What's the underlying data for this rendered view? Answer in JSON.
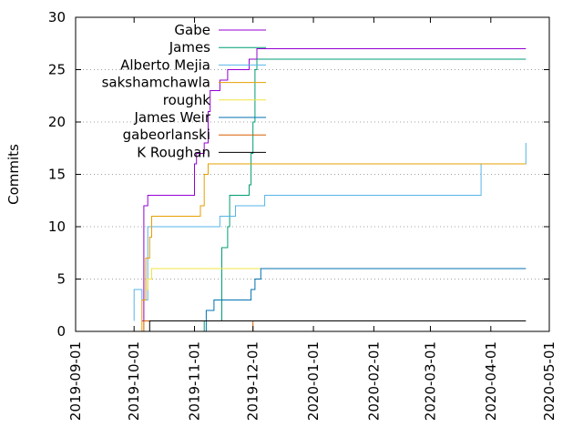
{
  "chart_data": {
    "type": "line",
    "step": true,
    "title": "",
    "xlabel": "",
    "ylabel": "Commits",
    "ylim": [
      0,
      30
    ],
    "xlim": [
      "2019-09-01",
      "2020-05-01"
    ],
    "yticks": [
      "0",
      "5",
      "10",
      "15",
      "20",
      "25",
      "30"
    ],
    "xticks": [
      "2019-09-01",
      "2019-10-01",
      "2019-11-01",
      "2019-12-01",
      "2020-01-01",
      "2020-02-01",
      "2020-03-01",
      "2020-04-01",
      "2020-05-01"
    ],
    "grid": true,
    "legend_position": "top-left",
    "series": [
      {
        "name": "Gabe",
        "color": "#9400d3",
        "points": [
          [
            "2019-10-05",
            1
          ],
          [
            "2019-10-06",
            4
          ],
          [
            "2019-10-06",
            12
          ],
          [
            "2019-10-08",
            13
          ],
          [
            "2019-10-14",
            13
          ],
          [
            "2019-11-01",
            16
          ],
          [
            "2019-11-02",
            16
          ],
          [
            "2019-11-02",
            17
          ],
          [
            "2019-11-06",
            18
          ],
          [
            "2019-11-08",
            21
          ],
          [
            "2019-11-09",
            23
          ],
          [
            "2019-11-13",
            23
          ],
          [
            "2019-11-14",
            24
          ],
          [
            "2019-11-17",
            24
          ],
          [
            "2019-11-18",
            25
          ],
          [
            "2019-11-28",
            25
          ],
          [
            "2019-11-29",
            26
          ],
          [
            "2019-12-02",
            26
          ],
          [
            "2019-12-03",
            27
          ],
          [
            "2020-04-19",
            27
          ]
        ]
      },
      {
        "name": "James",
        "color": "#009e73",
        "points": [
          [
            "2019-11-05",
            0
          ],
          [
            "2019-11-06",
            1
          ],
          [
            "2019-11-07",
            1
          ],
          [
            "2019-11-15",
            8
          ],
          [
            "2019-11-18",
            10
          ],
          [
            "2019-11-19",
            13
          ],
          [
            "2019-11-23",
            13
          ],
          [
            "2019-11-29",
            14
          ],
          [
            "2019-11-30",
            17
          ],
          [
            "2019-12-01",
            20
          ],
          [
            "2019-12-02",
            25
          ],
          [
            "2019-12-03",
            26
          ],
          [
            "2020-04-19",
            26
          ]
        ]
      },
      {
        "name": "Alberto Mejia",
        "color": "#56b4e9",
        "points": [
          [
            "2019-10-01",
            1
          ],
          [
            "2019-10-01",
            4
          ],
          [
            "2019-10-05",
            4
          ],
          [
            "2019-10-05",
            3
          ],
          [
            "2019-10-08",
            5
          ],
          [
            "2019-10-08",
            10
          ],
          [
            "2019-11-14",
            10
          ],
          [
            "2019-11-14",
            11
          ],
          [
            "2019-11-22",
            11
          ],
          [
            "2019-11-22",
            12
          ],
          [
            "2019-12-07",
            12
          ],
          [
            "2019-12-07",
            13
          ],
          [
            "2020-03-27",
            14
          ],
          [
            "2020-03-27",
            16
          ],
          [
            "2020-04-19",
            17
          ],
          [
            "2020-04-19",
            18
          ]
        ]
      },
      {
        "name": "sakshamchawla",
        "color": "#e69f00",
        "points": [
          [
            "2019-10-02",
            0
          ],
          [
            "2019-10-05",
            3
          ],
          [
            "2019-10-07",
            7
          ],
          [
            "2019-10-09",
            9
          ],
          [
            "2019-10-10",
            11
          ],
          [
            "2019-11-01",
            11
          ],
          [
            "2019-11-04",
            12
          ],
          [
            "2019-11-06",
            12
          ],
          [
            "2019-11-06",
            15
          ],
          [
            "2019-11-08",
            16
          ],
          [
            "2020-04-19",
            16
          ]
        ]
      },
      {
        "name": "roughk",
        "color": "#f0e442",
        "points": [
          [
            "2019-10-07",
            4
          ],
          [
            "2019-10-08",
            5
          ],
          [
            "2019-10-10",
            5
          ],
          [
            "2019-10-10",
            6
          ],
          [
            "2019-12-07",
            6
          ]
        ]
      },
      {
        "name": "James Weir",
        "color": "#0072b2",
        "points": [
          [
            "2019-11-06",
            0
          ],
          [
            "2019-11-07",
            2
          ],
          [
            "2019-11-10",
            2
          ],
          [
            "2019-11-11",
            3
          ],
          [
            "2019-11-29",
            3
          ],
          [
            "2019-11-30",
            4
          ],
          [
            "2019-12-02",
            5
          ],
          [
            "2019-12-05",
            6
          ],
          [
            "2020-04-19",
            6
          ]
        ]
      },
      {
        "name": "gabeorlanski",
        "color": "#d55e00",
        "points": [
          [
            "2019-10-06",
            0
          ],
          [
            "2019-10-06",
            1
          ],
          [
            "2019-12-01",
            0
          ],
          [
            "2019-12-01",
            1
          ]
        ]
      },
      {
        "name": "K Roughan",
        "color": "#000000",
        "points": [
          [
            "2019-10-09",
            0
          ],
          [
            "2019-10-09",
            1
          ],
          [
            "2020-04-19",
            1
          ]
        ]
      }
    ]
  }
}
